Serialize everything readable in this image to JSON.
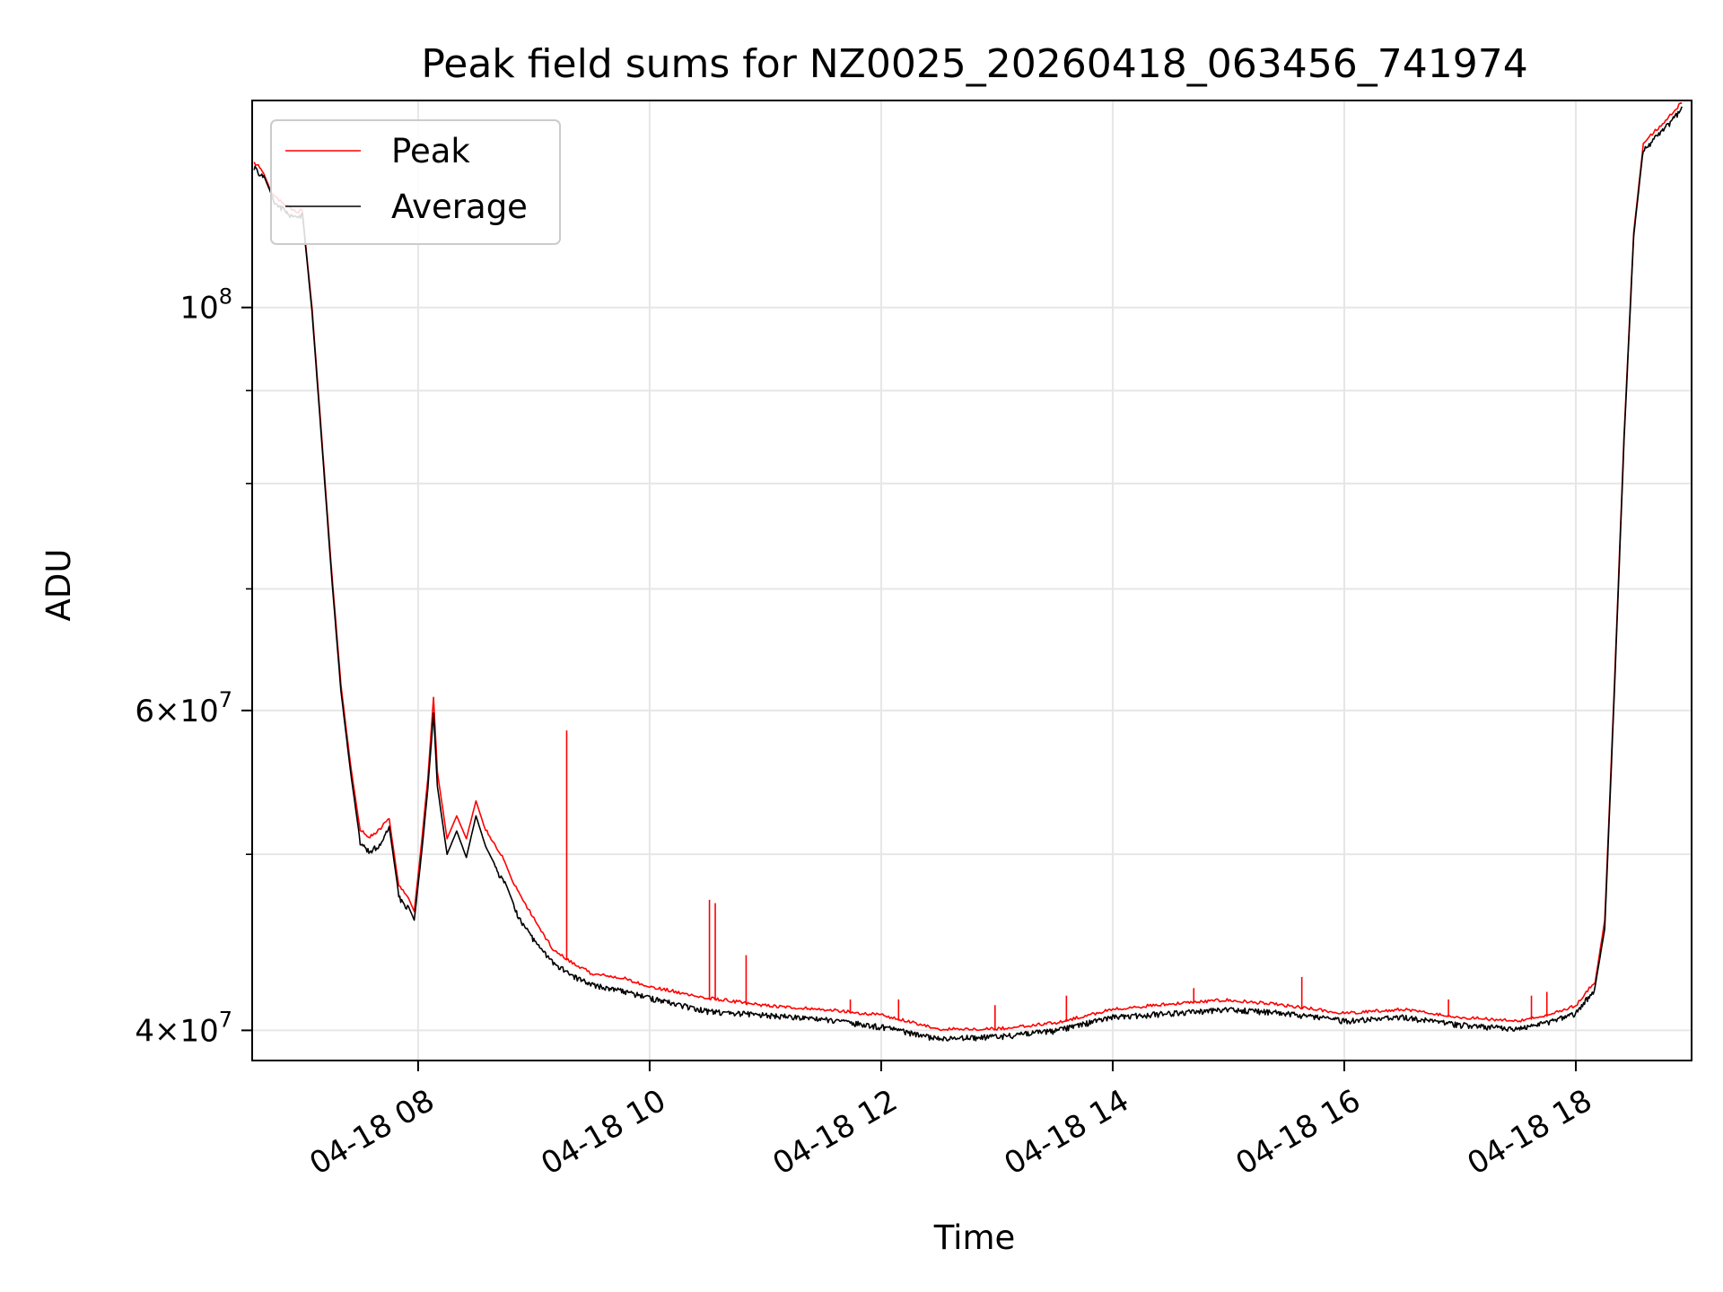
{
  "chart_data": {
    "type": "line",
    "title": "Peak field sums for NZ0025_20260418_063456_741974",
    "xlabel": "Time",
    "ylabel": "ADU",
    "yscale": "log",
    "xlim": [
      "2026-04-18 06:34",
      "2026-04-18 19:00"
    ],
    "ylim": [
      38500000,
      130000000
    ],
    "grid": true,
    "legend_position": "top-left",
    "x_ticks": [
      "04-18 08",
      "04-18 10",
      "04-18 12",
      "04-18 14",
      "04-18 16",
      "04-18 18"
    ],
    "y_ticks": [
      {
        "value": 100000000,
        "base": "10",
        "exp": "8",
        "mantissa": ""
      },
      {
        "value": 60000000,
        "base": "10",
        "exp": "7",
        "mantissa": "6"
      },
      {
        "value": 40000000,
        "base": "10",
        "exp": "7",
        "mantissa": "4"
      }
    ],
    "y_minor_ticks": [
      50000000,
      70000000,
      80000000,
      90000000
    ],
    "series": [
      {
        "name": "Peak",
        "color": "#ff0000",
        "points": [
          [
            "2026-04-18 06:35",
            120000000
          ],
          [
            "2026-04-18 06:40",
            118500000
          ],
          [
            "2026-04-18 06:45",
            115000000
          ],
          [
            "2026-04-18 06:50",
            114000000
          ],
          [
            "2026-04-18 06:55",
            113000000
          ],
          [
            "2026-04-18 06:58",
            112700000
          ],
          [
            "2026-04-18 07:00",
            113000000
          ],
          [
            "2026-04-18 07:05",
            100000000
          ],
          [
            "2026-04-18 07:10",
            85000000
          ],
          [
            "2026-04-18 07:15",
            72000000
          ],
          [
            "2026-04-18 07:20",
            62000000
          ],
          [
            "2026-04-18 07:25",
            56000000
          ],
          [
            "2026-04-18 07:30",
            51500000
          ],
          [
            "2026-04-18 07:35",
            51000000
          ],
          [
            "2026-04-18 07:40",
            51500000
          ],
          [
            "2026-04-18 07:45",
            52300000
          ],
          [
            "2026-04-18 07:50",
            48000000
          ],
          [
            "2026-04-18 07:55",
            47300000
          ],
          [
            "2026-04-18 07:58",
            46500000
          ],
          [
            "2026-04-18 08:02",
            51000000
          ],
          [
            "2026-04-18 08:05",
            55000000
          ],
          [
            "2026-04-18 08:08",
            61000000
          ],
          [
            "2026-04-18 08:10",
            55500000
          ],
          [
            "2026-04-18 08:15",
            51000000
          ],
          [
            "2026-04-18 08:20",
            52500000
          ],
          [
            "2026-04-18 08:25",
            51000000
          ],
          [
            "2026-04-18 08:30",
            53500000
          ],
          [
            "2026-04-18 08:35",
            51500000
          ],
          [
            "2026-04-18 08:40",
            50500000
          ],
          [
            "2026-04-18 08:45",
            49500000
          ],
          [
            "2026-04-18 08:50",
            48000000
          ],
          [
            "2026-04-18 08:55",
            47000000
          ],
          [
            "2026-04-18 09:00",
            46000000
          ],
          [
            "2026-04-18 09:10",
            44200000
          ],
          [
            "2026-04-18 09:20",
            43500000
          ],
          [
            "2026-04-18 09:30",
            42900000
          ],
          [
            "2026-04-18 09:45",
            42700000
          ],
          [
            "2026-04-18 10:00",
            42200000
          ],
          [
            "2026-04-18 10:30",
            41600000
          ],
          [
            "2026-04-18 11:00",
            41200000
          ],
          [
            "2026-04-18 11:30",
            41000000
          ],
          [
            "2026-04-18 12:00",
            40700000
          ],
          [
            "2026-04-18 12:30",
            40000000
          ],
          [
            "2026-04-18 13:00",
            40000000
          ],
          [
            "2026-04-18 13:30",
            40300000
          ],
          [
            "2026-04-18 14:00",
            41000000
          ],
          [
            "2026-04-18 14:30",
            41300000
          ],
          [
            "2026-04-18 15:00",
            41500000
          ],
          [
            "2026-04-18 15:30",
            41200000
          ],
          [
            "2026-04-18 16:00",
            40800000
          ],
          [
            "2026-04-18 16:30",
            41000000
          ],
          [
            "2026-04-18 17:00",
            40600000
          ],
          [
            "2026-04-18 17:30",
            40400000
          ],
          [
            "2026-04-18 17:45",
            40700000
          ],
          [
            "2026-04-18 18:00",
            41200000
          ],
          [
            "2026-04-18 18:10",
            42500000
          ],
          [
            "2026-04-18 18:15",
            46000000
          ],
          [
            "2026-04-18 18:20",
            62000000
          ],
          [
            "2026-04-18 18:25",
            85000000
          ],
          [
            "2026-04-18 18:30",
            110000000
          ],
          [
            "2026-04-18 18:35",
            123000000
          ],
          [
            "2026-04-18 18:45",
            126000000
          ],
          [
            "2026-04-18 18:55",
            129500000
          ]
        ],
        "spikes": [
          [
            "2026-04-18 09:17",
            58500000
          ],
          [
            "2026-04-18 10:31",
            47200000
          ],
          [
            "2026-04-18 10:34",
            47000000
          ],
          [
            "2026-04-18 10:50",
            44000000
          ],
          [
            "2026-04-18 11:44",
            41600000
          ],
          [
            "2026-04-18 12:09",
            41600000
          ],
          [
            "2026-04-18 12:59",
            41300000
          ],
          [
            "2026-04-18 13:36",
            41800000
          ],
          [
            "2026-04-18 14:42",
            42200000
          ],
          [
            "2026-04-18 15:38",
            42800000
          ],
          [
            "2026-04-18 16:54",
            41600000
          ],
          [
            "2026-04-18 17:37",
            41800000
          ],
          [
            "2026-04-18 17:45",
            42000000
          ]
        ]
      },
      {
        "name": "Average",
        "color": "#000000",
        "points": [
          [
            "2026-04-18 06:35",
            119800000
          ],
          [
            "2026-04-18 06:40",
            118200000
          ],
          [
            "2026-04-18 06:45",
            114700000
          ],
          [
            "2026-04-18 06:50",
            113600000
          ],
          [
            "2026-04-18 06:55",
            112500000
          ],
          [
            "2026-04-18 06:58",
            112300000
          ],
          [
            "2026-04-18 07:00",
            112700000
          ],
          [
            "2026-04-18 07:05",
            99500000
          ],
          [
            "2026-04-18 07:10",
            84500000
          ],
          [
            "2026-04-18 07:15",
            71500000
          ],
          [
            "2026-04-18 07:20",
            61500000
          ],
          [
            "2026-04-18 07:25",
            55500000
          ],
          [
            "2026-04-18 07:30",
            50800000
          ],
          [
            "2026-04-18 07:35",
            50300000
          ],
          [
            "2026-04-18 07:40",
            50800000
          ],
          [
            "2026-04-18 07:45",
            51800000
          ],
          [
            "2026-04-18 07:50",
            47500000
          ],
          [
            "2026-04-18 07:55",
            46800000
          ],
          [
            "2026-04-18 07:58",
            46000000
          ],
          [
            "2026-04-18 08:02",
            50300000
          ],
          [
            "2026-04-18 08:05",
            54300000
          ],
          [
            "2026-04-18 08:08",
            59800000
          ],
          [
            "2026-04-18 08:10",
            54500000
          ],
          [
            "2026-04-18 08:15",
            50000000
          ],
          [
            "2026-04-18 08:20",
            51500000
          ],
          [
            "2026-04-18 08:25",
            49800000
          ],
          [
            "2026-04-18 08:30",
            52500000
          ],
          [
            "2026-04-18 08:35",
            50500000
          ],
          [
            "2026-04-18 08:40",
            49300000
          ],
          [
            "2026-04-18 08:45",
            48300000
          ],
          [
            "2026-04-18 08:50",
            46800000
          ],
          [
            "2026-04-18 08:55",
            45800000
          ],
          [
            "2026-04-18 09:00",
            45000000
          ],
          [
            "2026-04-18 09:10",
            43700000
          ],
          [
            "2026-04-18 09:20",
            43000000
          ],
          [
            "2026-04-18 09:30",
            42500000
          ],
          [
            "2026-04-18 09:45",
            42200000
          ],
          [
            "2026-04-18 10:00",
            41800000
          ],
          [
            "2026-04-18 10:30",
            41100000
          ],
          [
            "2026-04-18 11:00",
            40900000
          ],
          [
            "2026-04-18 11:30",
            40700000
          ],
          [
            "2026-04-18 12:00",
            40300000
          ],
          [
            "2026-04-18 12:30",
            39700000
          ],
          [
            "2026-04-18 13:00",
            39800000
          ],
          [
            "2026-04-18 13:30",
            40100000
          ],
          [
            "2026-04-18 14:00",
            40800000
          ],
          [
            "2026-04-18 14:30",
            41000000
          ],
          [
            "2026-04-18 15:00",
            41200000
          ],
          [
            "2026-04-18 15:30",
            41000000
          ],
          [
            "2026-04-18 16:00",
            40600000
          ],
          [
            "2026-04-18 16:30",
            40800000
          ],
          [
            "2026-04-18 17:00",
            40400000
          ],
          [
            "2026-04-18 17:30",
            40200000
          ],
          [
            "2026-04-18 17:45",
            40500000
          ],
          [
            "2026-04-18 18:00",
            41000000
          ],
          [
            "2026-04-18 18:10",
            42300000
          ],
          [
            "2026-04-18 18:15",
            45500000
          ],
          [
            "2026-04-18 18:20",
            61500000
          ],
          [
            "2026-04-18 18:25",
            84500000
          ],
          [
            "2026-04-18 18:30",
            109500000
          ],
          [
            "2026-04-18 18:35",
            122500000
          ],
          [
            "2026-04-18 18:45",
            125500000
          ],
          [
            "2026-04-18 18:55",
            129000000
          ]
        ]
      }
    ]
  }
}
